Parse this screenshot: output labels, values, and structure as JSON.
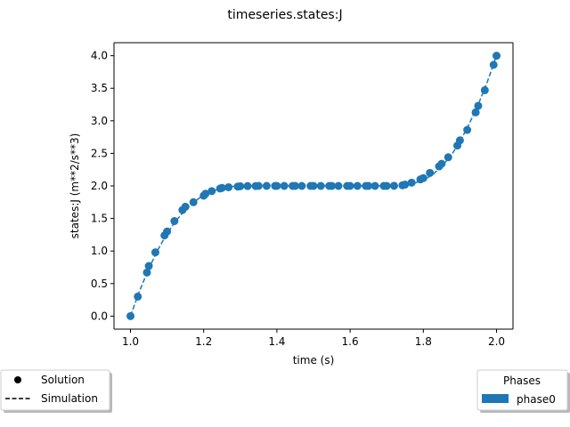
{
  "chart_data": {
    "type": "scatter",
    "title": "timeseries.states:J",
    "xlabel": "time (s)",
    "ylabel": "states:J (m**2/s**3)",
    "xlim": [
      0.955,
      2.045
    ],
    "ylim": [
      -0.2,
      4.2
    ],
    "x_ticks": [
      1.0,
      1.2,
      1.4,
      1.6,
      1.8,
      2.0
    ],
    "x_tick_labels": [
      "1.0",
      "1.2",
      "1.4",
      "1.6",
      "1.8",
      "2.0"
    ],
    "y_ticks": [
      0.0,
      0.5,
      1.0,
      1.5,
      2.0,
      2.5,
      3.0,
      3.5,
      4.0
    ],
    "y_tick_labels": [
      "0.0",
      "0.5",
      "1.0",
      "1.5",
      "2.0",
      "2.5",
      "3.0",
      "3.5",
      "4.0"
    ],
    "grid": false,
    "series": [
      {
        "name": "Solution",
        "style": "markers",
        "color": "#1f77b4",
        "x": [
          1.0,
          1.02,
          1.045,
          1.05,
          1.068,
          1.093,
          1.1,
          1.12,
          1.142,
          1.15,
          1.172,
          1.2,
          1.205,
          1.222,
          1.245,
          1.25,
          1.268,
          1.293,
          1.3,
          1.32,
          1.342,
          1.35,
          1.372,
          1.395,
          1.4,
          1.42,
          1.443,
          1.45,
          1.468,
          1.492,
          1.5,
          1.52,
          1.543,
          1.55,
          1.568,
          1.592,
          1.6,
          1.62,
          1.643,
          1.65,
          1.668,
          1.692,
          1.7,
          1.72,
          1.743,
          1.75,
          1.768,
          1.792,
          1.8,
          1.818,
          1.843,
          1.85,
          1.868,
          1.893,
          1.9,
          1.92,
          1.943,
          1.95,
          1.968,
          1.992,
          2.0
        ],
        "y": [
          0.0,
          0.3,
          0.67,
          0.77,
          0.98,
          1.24,
          1.3,
          1.46,
          1.63,
          1.68,
          1.75,
          1.85,
          1.88,
          1.92,
          1.96,
          1.97,
          1.98,
          1.99,
          1.995,
          1.998,
          1.999,
          2.0,
          2.0,
          2.0,
          2.0,
          2.0,
          2.0,
          2.0,
          2.0,
          2.0,
          2.0,
          2.0,
          2.0,
          2.0,
          2.0,
          2.0,
          2.0,
          2.0,
          2.0,
          2.0,
          2.0,
          2.0,
          2.0,
          2.002,
          2.01,
          2.02,
          2.05,
          2.1,
          2.12,
          2.2,
          2.3,
          2.34,
          2.44,
          2.62,
          2.7,
          2.86,
          3.13,
          3.23,
          3.47,
          3.86,
          4.0
        ]
      },
      {
        "name": "Simulation",
        "style": "dashed",
        "color": "#1f77b4",
        "x": [
          1.0,
          1.025,
          1.05,
          1.075,
          1.1,
          1.125,
          1.15,
          1.175,
          1.2,
          1.225,
          1.25,
          1.275,
          1.3,
          1.35,
          1.4,
          1.5,
          1.6,
          1.7,
          1.725,
          1.75,
          1.775,
          1.8,
          1.825,
          1.85,
          1.875,
          1.9,
          1.925,
          1.95,
          1.975,
          2.0
        ],
        "y": [
          0.0,
          0.39,
          0.73,
          1.02,
          1.27,
          1.47,
          1.63,
          1.76,
          1.86,
          1.92,
          1.97,
          1.99,
          2.0,
          2.0,
          2.0,
          2.0,
          2.0,
          2.0,
          2.0,
          2.01,
          2.04,
          2.09,
          2.17,
          2.3,
          2.46,
          2.68,
          2.95,
          3.25,
          3.6,
          4.0
        ]
      }
    ],
    "legend_left": {
      "placement": "bottom-left",
      "entries": [
        {
          "label": "Solution",
          "marker": "dot",
          "color": "#000000"
        },
        {
          "label": "Simulation",
          "marker": "dashed-line",
          "color": "#000000"
        }
      ]
    },
    "legend_right": {
      "placement": "bottom-right",
      "title": "Phases",
      "entries": [
        {
          "label": "phase0",
          "marker": "patch",
          "color": "#1f77b4"
        }
      ]
    }
  }
}
